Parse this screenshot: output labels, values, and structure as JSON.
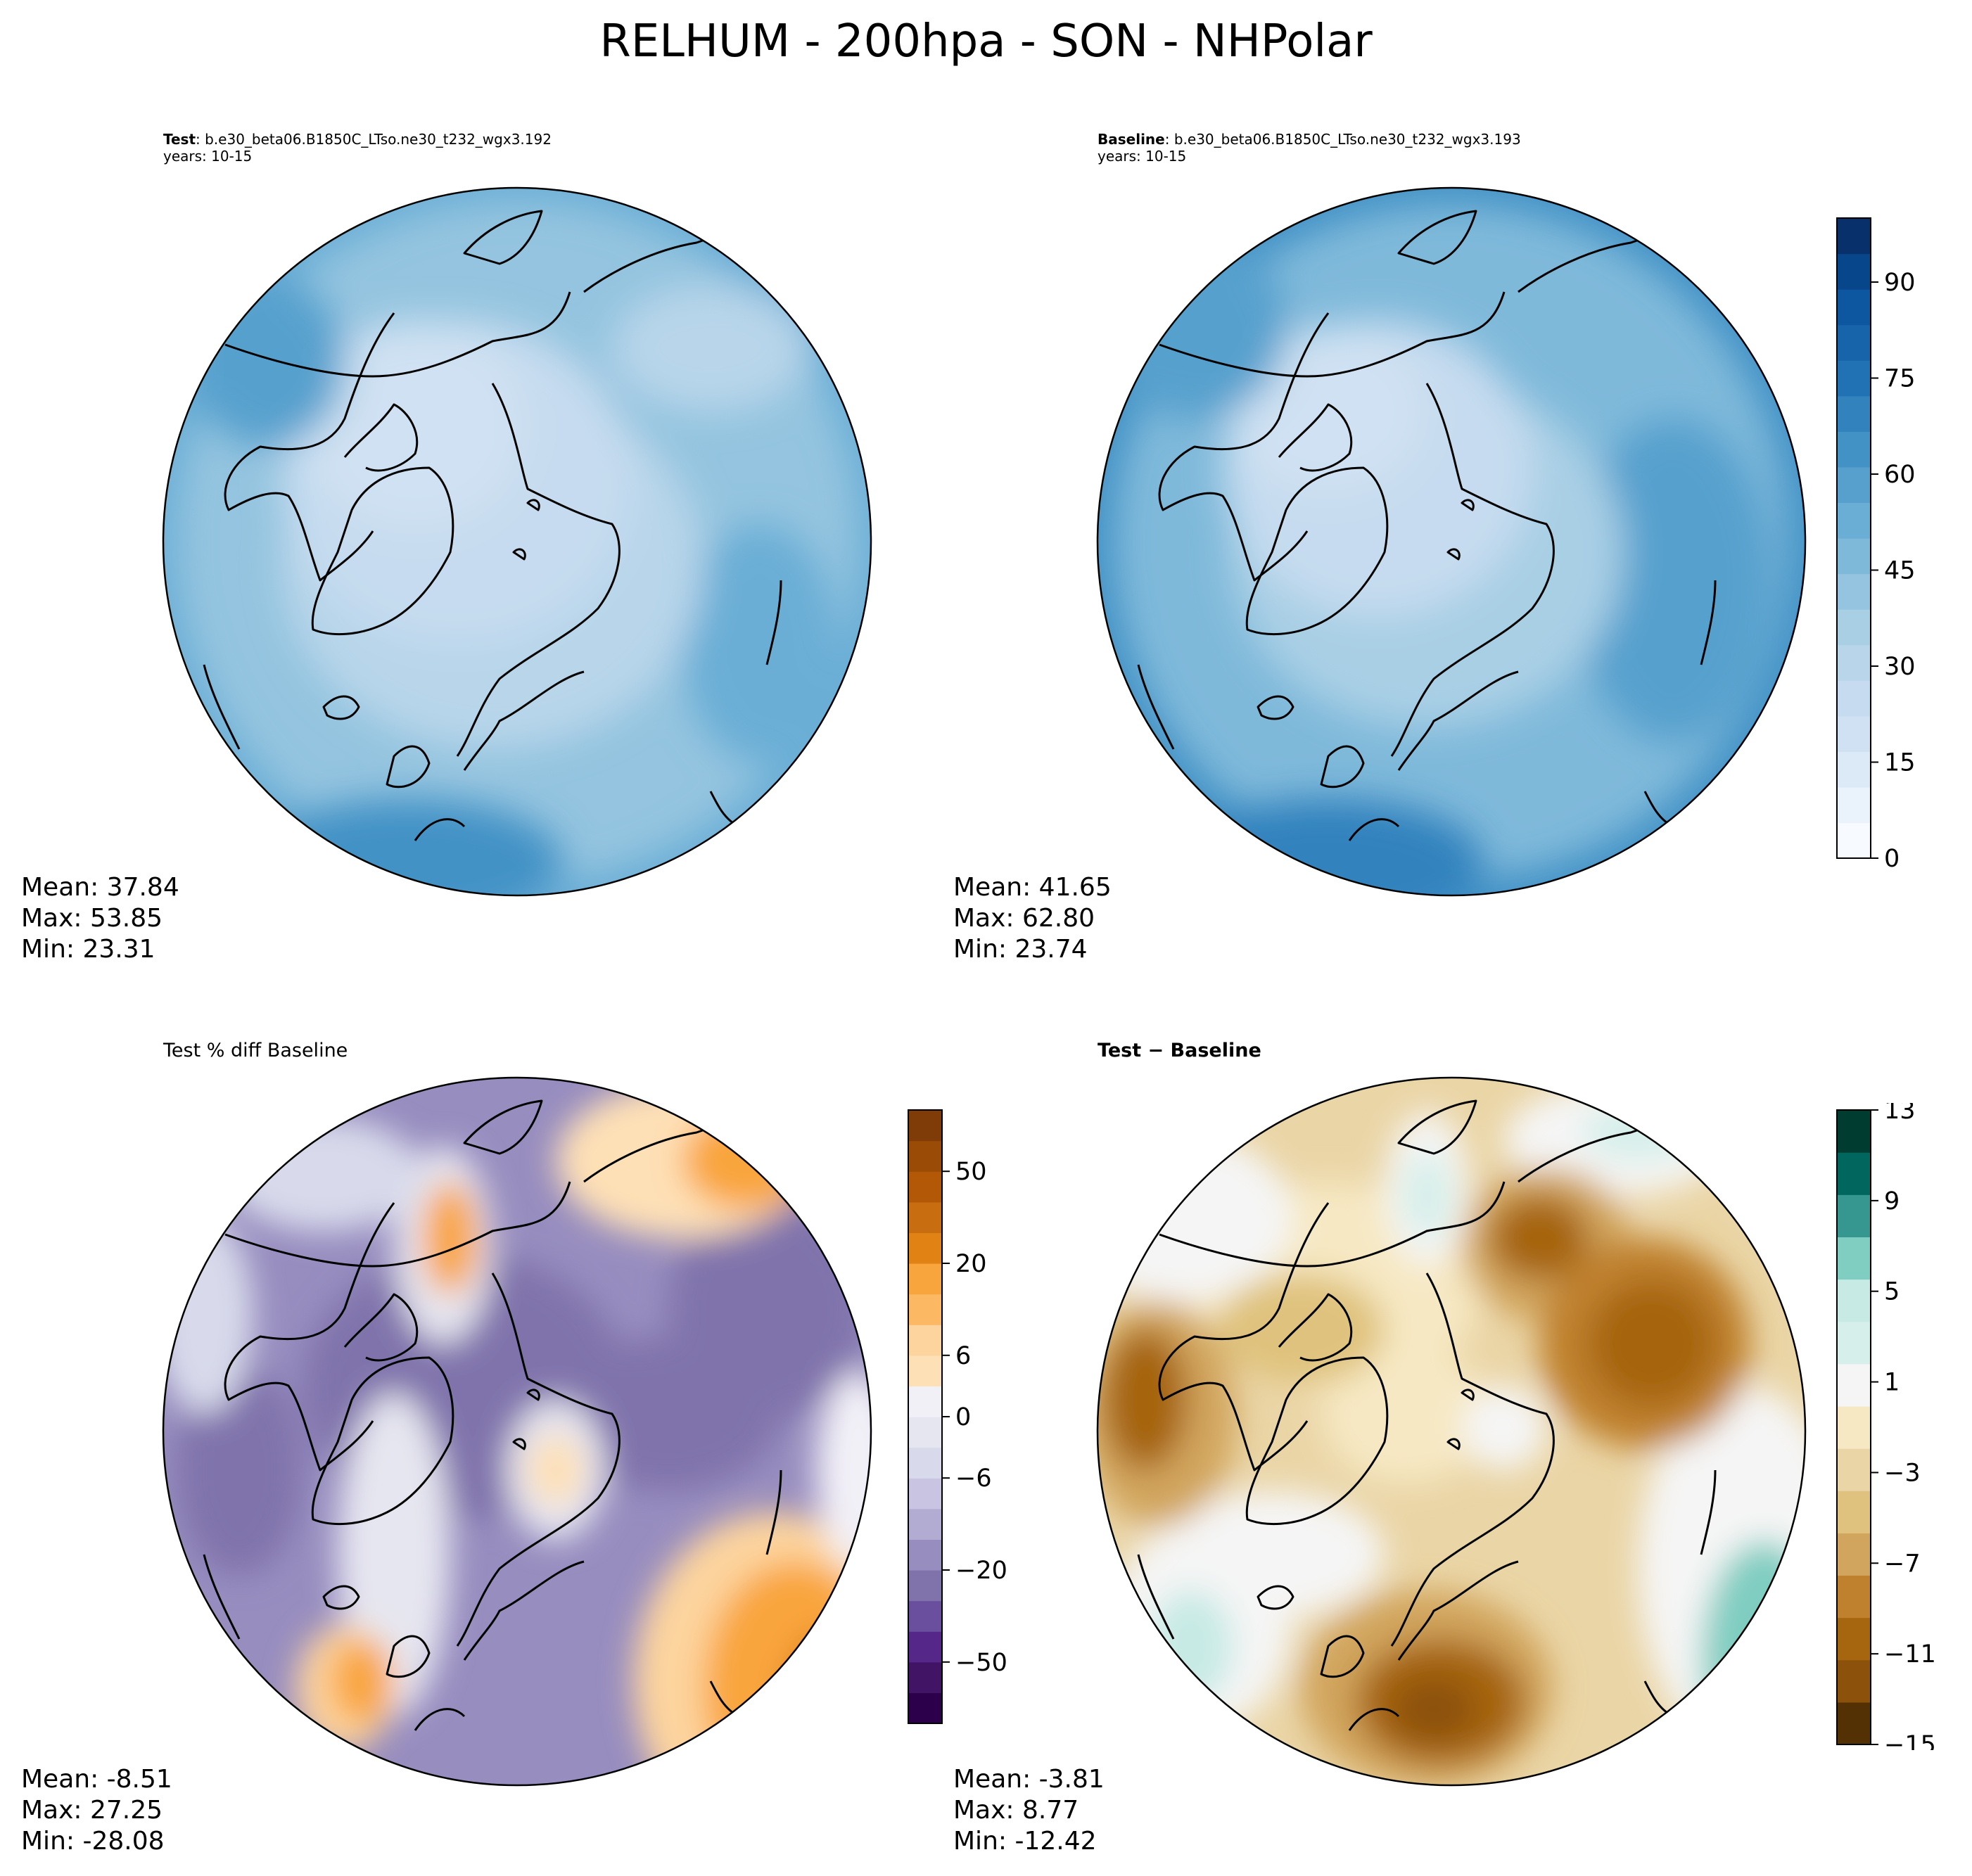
{
  "title": "RELHUM - 200hpa - SON - NHPolar",
  "colors": {
    "blues": [
      "#f7fbff",
      "#eaf2fb",
      "#dce9f6",
      "#cfe1f2",
      "#c6dbef",
      "#b8d5ea",
      "#a9cfe5",
      "#94c4df",
      "#7fb9da",
      "#6aaed6",
      "#57a0ce",
      "#4292c6",
      "#3282be",
      "#2171b5",
      "#1764ab",
      "#0d57a1",
      "#08468b",
      "#08306b"
    ],
    "purple_orange": [
      "#2d004b",
      "#411466",
      "#542788",
      "#6a4f9f",
      "#8073ac",
      "#978dbf",
      "#b2abd2",
      "#c8c4e1",
      "#d8daeb",
      "#e6e6f0",
      "#f2f0f7",
      "#fee0b6",
      "#fdd49e",
      "#fdb863",
      "#f9a53d",
      "#e08214",
      "#c86d10",
      "#b35806",
      "#9a4b05",
      "#7f3b08"
    ],
    "brown_teal": [
      "#543005",
      "#8c510a",
      "#a6650f",
      "#bf812d",
      "#d1a55d",
      "#dfc27d",
      "#ead5a6",
      "#f6e8c3",
      "#f5f5f5",
      "#d6efea",
      "#c7eae5",
      "#80cdc1",
      "#35978f",
      "#01665e",
      "#003c30"
    ]
  },
  "panels": {
    "test": {
      "label_bold": "Test",
      "label_rest": ": b.e30_beta06.B1850C_LTso.ne30_t232_wgx3.192",
      "years": "years: 10-15",
      "mean": "Mean: 37.84",
      "max": "Max: 53.85",
      "min": "Min: 23.31"
    },
    "baseline": {
      "label_bold": "Baseline",
      "label_rest": ": b.e30_beta06.B1850C_LTso.ne30_t232_wgx3.193",
      "years": "years: 10-15",
      "mean": "Mean: 41.65",
      "max": "Max: 62.80",
      "min": "Min: 23.74"
    },
    "pctdiff": {
      "label": "Test % diff Baseline",
      "mean": "Mean: -8.51",
      "max": "Max: 27.25",
      "min": "Min: -28.08"
    },
    "diff": {
      "label_bold": "Test − Baseline",
      "mean": "Mean: -3.81",
      "max": "Max:  8.77",
      "min": "Min: -12.42"
    }
  },
  "colorbars": {
    "relhum": {
      "ticks": [
        "0",
        "15",
        "30",
        "45",
        "60",
        "75",
        "90"
      ]
    },
    "pctdiff": {
      "ticks": [
        "−50",
        "−20",
        "−6",
        "0",
        "6",
        "20",
        "50"
      ]
    },
    "diff": {
      "ticks": [
        "−15",
        "−11",
        "−7",
        "−3",
        "1",
        "5",
        "9",
        "13"
      ]
    }
  }
}
